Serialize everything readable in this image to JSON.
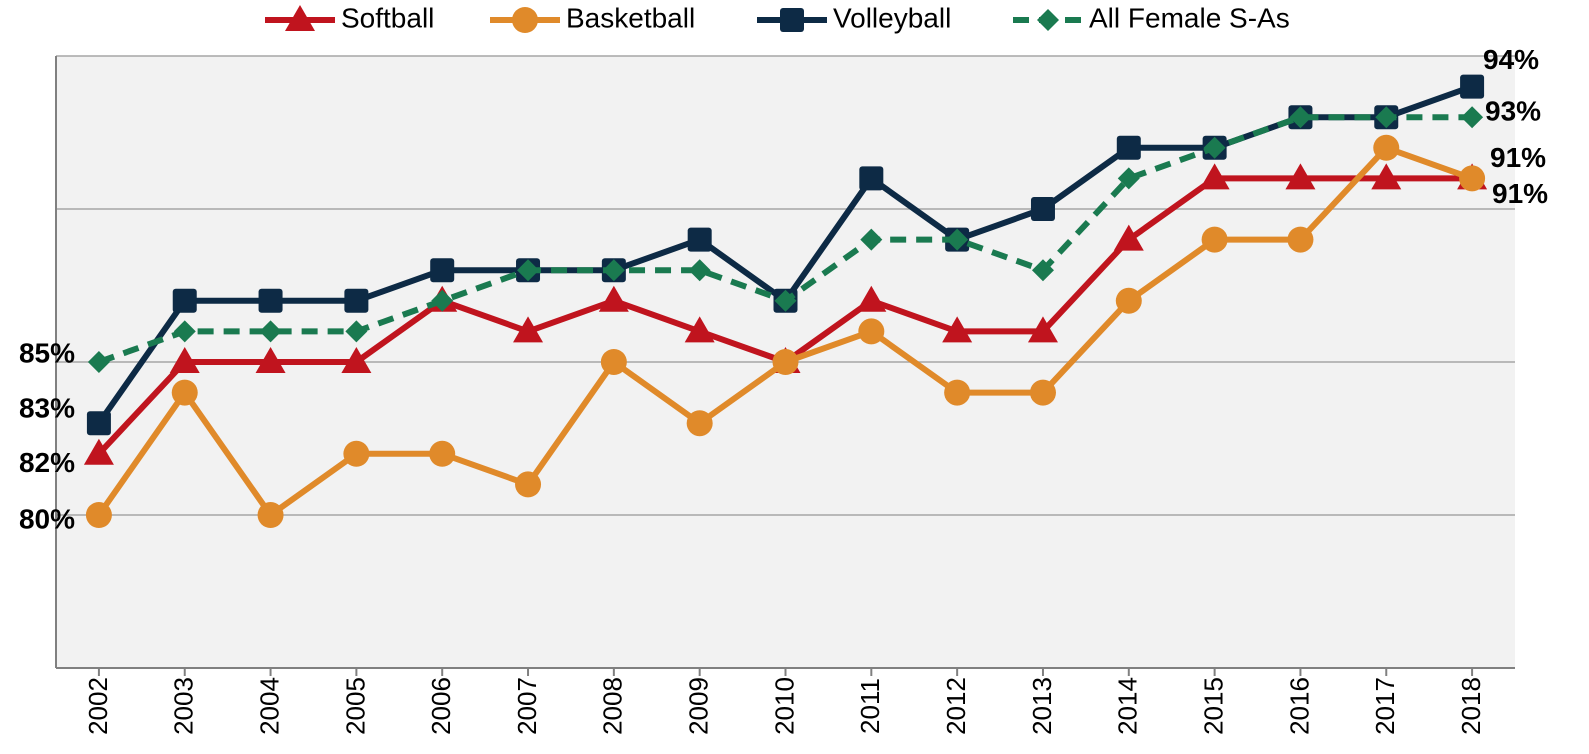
{
  "chart_data": {
    "type": "line",
    "categories": [
      "2002",
      "2003",
      "2004",
      "2005",
      "2006",
      "2007",
      "2008",
      "2009",
      "2010",
      "2011",
      "2012",
      "2013",
      "2014",
      "2015",
      "2016",
      "2017",
      "2018"
    ],
    "series": [
      {
        "name": "Softball",
        "color": "#c0141e",
        "marker": "triangle",
        "dashed": false,
        "values": [
          82,
          85,
          85,
          85,
          87,
          86,
          87,
          86,
          85,
          87,
          86,
          86,
          89,
          91,
          91,
          91,
          91
        ],
        "value_labels": [
          "82%",
          null,
          null,
          null,
          null,
          null,
          null,
          null,
          null,
          null,
          null,
          null,
          null,
          null,
          null,
          null,
          "91%"
        ]
      },
      {
        "name": "Basketball",
        "color": "#e08a2a",
        "marker": "circle",
        "dashed": false,
        "values": [
          80,
          84,
          80,
          82,
          82,
          81,
          85,
          83,
          85,
          86,
          84,
          84,
          87,
          89,
          89,
          92,
          91
        ],
        "value_labels": [
          "80%",
          null,
          null,
          null,
          null,
          null,
          null,
          null,
          null,
          null,
          null,
          null,
          null,
          null,
          null,
          null,
          "91%"
        ]
      },
      {
        "name": "Volleyball",
        "color": "#0d2a45",
        "marker": "square",
        "dashed": false,
        "values": [
          83,
          87,
          87,
          87,
          88,
          88,
          88,
          89,
          87,
          91,
          89,
          90,
          92,
          92,
          93,
          93,
          94
        ],
        "value_labels": [
          "83%",
          null,
          null,
          null,
          null,
          null,
          null,
          null,
          null,
          null,
          null,
          null,
          null,
          null,
          null,
          null,
          "94%"
        ]
      },
      {
        "name": "All Female S-As",
        "color": "#1a7a50",
        "marker": "diamond",
        "dashed": true,
        "values": [
          85,
          86,
          86,
          86,
          87,
          88,
          88,
          88,
          87,
          89,
          89,
          88,
          91,
          92,
          93,
          93,
          93
        ],
        "value_labels": [
          "85%",
          null,
          null,
          null,
          null,
          null,
          null,
          null,
          null,
          null,
          null,
          null,
          null,
          null,
          null,
          null,
          "93%"
        ]
      }
    ],
    "ylim": [
      75,
      95
    ],
    "yticks": [
      75,
      80,
      85,
      90,
      95
    ],
    "show_ytick_labels": false,
    "grid": true,
    "legend": "top"
  }
}
